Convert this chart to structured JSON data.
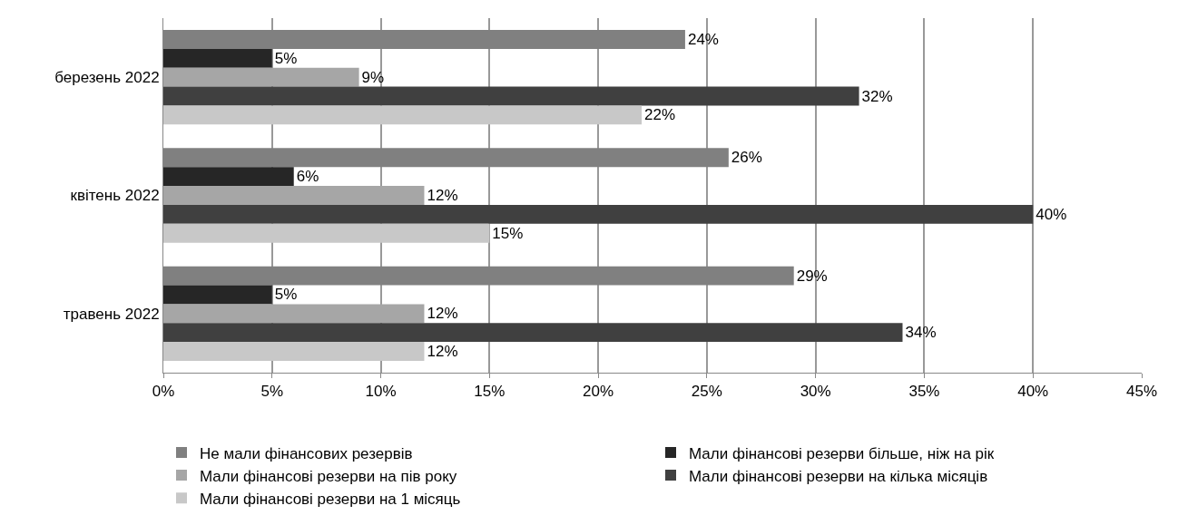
{
  "chart_data": {
    "type": "bar",
    "orientation": "horizontal",
    "categories": [
      "березень 2022",
      "квітень 2022",
      "травень 2022"
    ],
    "series": [
      {
        "name": "Не мали фінансових резервів",
        "color": "#808080",
        "values": [
          24,
          26,
          29
        ],
        "value_labels": [
          "24%",
          "26%",
          "29%"
        ]
      },
      {
        "name": "Мали фінансові резерви більше, ніж на рік",
        "color": "#262626",
        "values": [
          5,
          6,
          5
        ],
        "value_labels": [
          "5%",
          "6%",
          "5%"
        ]
      },
      {
        "name": "Мали фінансові резерви на пів року",
        "color": "#a6a6a6",
        "values": [
          9,
          12,
          12
        ],
        "value_labels": [
          "9%",
          "12%",
          "12%"
        ]
      },
      {
        "name": "Мали фінансові резерви на кілька місяців",
        "color": "#404040",
        "values": [
          32,
          40,
          34
        ],
        "value_labels": [
          "32%",
          "40%",
          "34%"
        ]
      },
      {
        "name": "Мали фінансові резерви на 1 місяць",
        "color": "#c8c8c8",
        "values": [
          22,
          15,
          12
        ],
        "value_labels": [
          "22%",
          "15%",
          "12%"
        ]
      }
    ],
    "xlim": [
      0,
      45
    ],
    "xticks": [
      {
        "value": 0,
        "label": "0%"
      },
      {
        "value": 5,
        "label": "5%"
      },
      {
        "value": 10,
        "label": "10%"
      },
      {
        "value": 15,
        "label": "15%"
      },
      {
        "value": 20,
        "label": "20%"
      },
      {
        "value": 25,
        "label": "25%"
      },
      {
        "value": 30,
        "label": "30%"
      },
      {
        "value": 35,
        "label": "35%"
      },
      {
        "value": 40,
        "label": "40%"
      },
      {
        "value": 45,
        "label": "45%"
      }
    ],
    "grid": "x",
    "legend": "bottom"
  }
}
